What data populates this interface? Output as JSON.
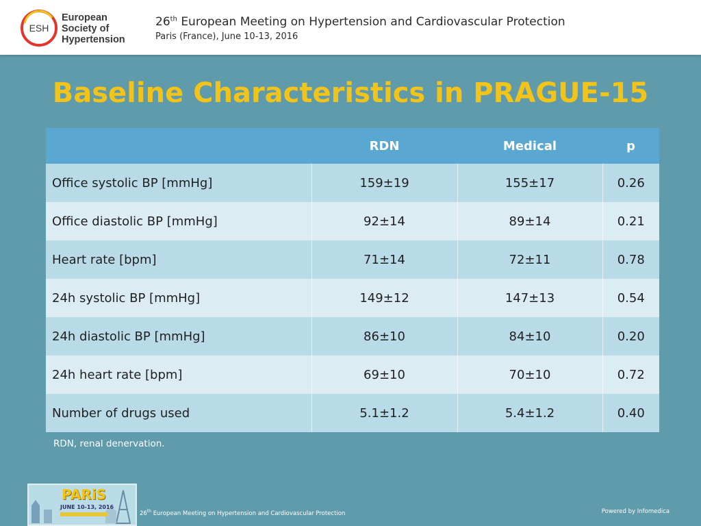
{
  "header": {
    "logo_abbr": "ESH",
    "logo_lines": [
      "European",
      "Society of",
      "Hypertension"
    ],
    "meeting_ordinal": "26",
    "meeting_ordinal_suffix": "th",
    "meeting_title": "European Meeting on Hypertension and Cardiovascular Protection",
    "meeting_location": "Paris (France), June 10-13, 2016"
  },
  "slide": {
    "title": "Baseline Characteristics in PRAGUE-15"
  },
  "table": {
    "columns": [
      "",
      "RDN",
      "Medical",
      "p"
    ],
    "rows": [
      [
        "Office systolic BP [mmHg]",
        "159±19",
        "155±17",
        "0.26"
      ],
      [
        "Office diastolic BP [mmHg]",
        "92±14",
        "89±14",
        "0.21"
      ],
      [
        "Heart rate [bpm]",
        "71±14",
        "72±11",
        "0.78"
      ],
      [
        "24h systolic BP [mmHg]",
        "149±12",
        "147±13",
        "0.54"
      ],
      [
        "24h diastolic BP [mmHg]",
        "86±10",
        "84±10",
        "0.20"
      ],
      [
        "24h heart rate [bpm]",
        "69±10",
        "70±10",
        "0.72"
      ],
      [
        "Number of drugs used",
        "5.1±1.2",
        "5.4±1.2",
        "0.40"
      ]
    ]
  },
  "footnote": "RDN, renal denervation.",
  "footer": {
    "badge_city": "PARiS",
    "badge_dates": "JUNE 10-13, 2016",
    "meeting_ordinal": "26",
    "meeting_ordinal_suffix": "th",
    "meeting_title": "European Meeting on Hypertension and Cardiovascular Protection",
    "powered_by": "Powered by Infomedica"
  },
  "colors": {
    "background": "#5f9bab",
    "title": "#f2c318",
    "table_header": "#5aa8d1",
    "row_dark": "#b9dbe7",
    "row_light": "#dcecf3",
    "logo_red": "#e2352c"
  },
  "icons": {
    "logo": "esh-logo-icon",
    "badge": "paris-skyline-icon"
  }
}
